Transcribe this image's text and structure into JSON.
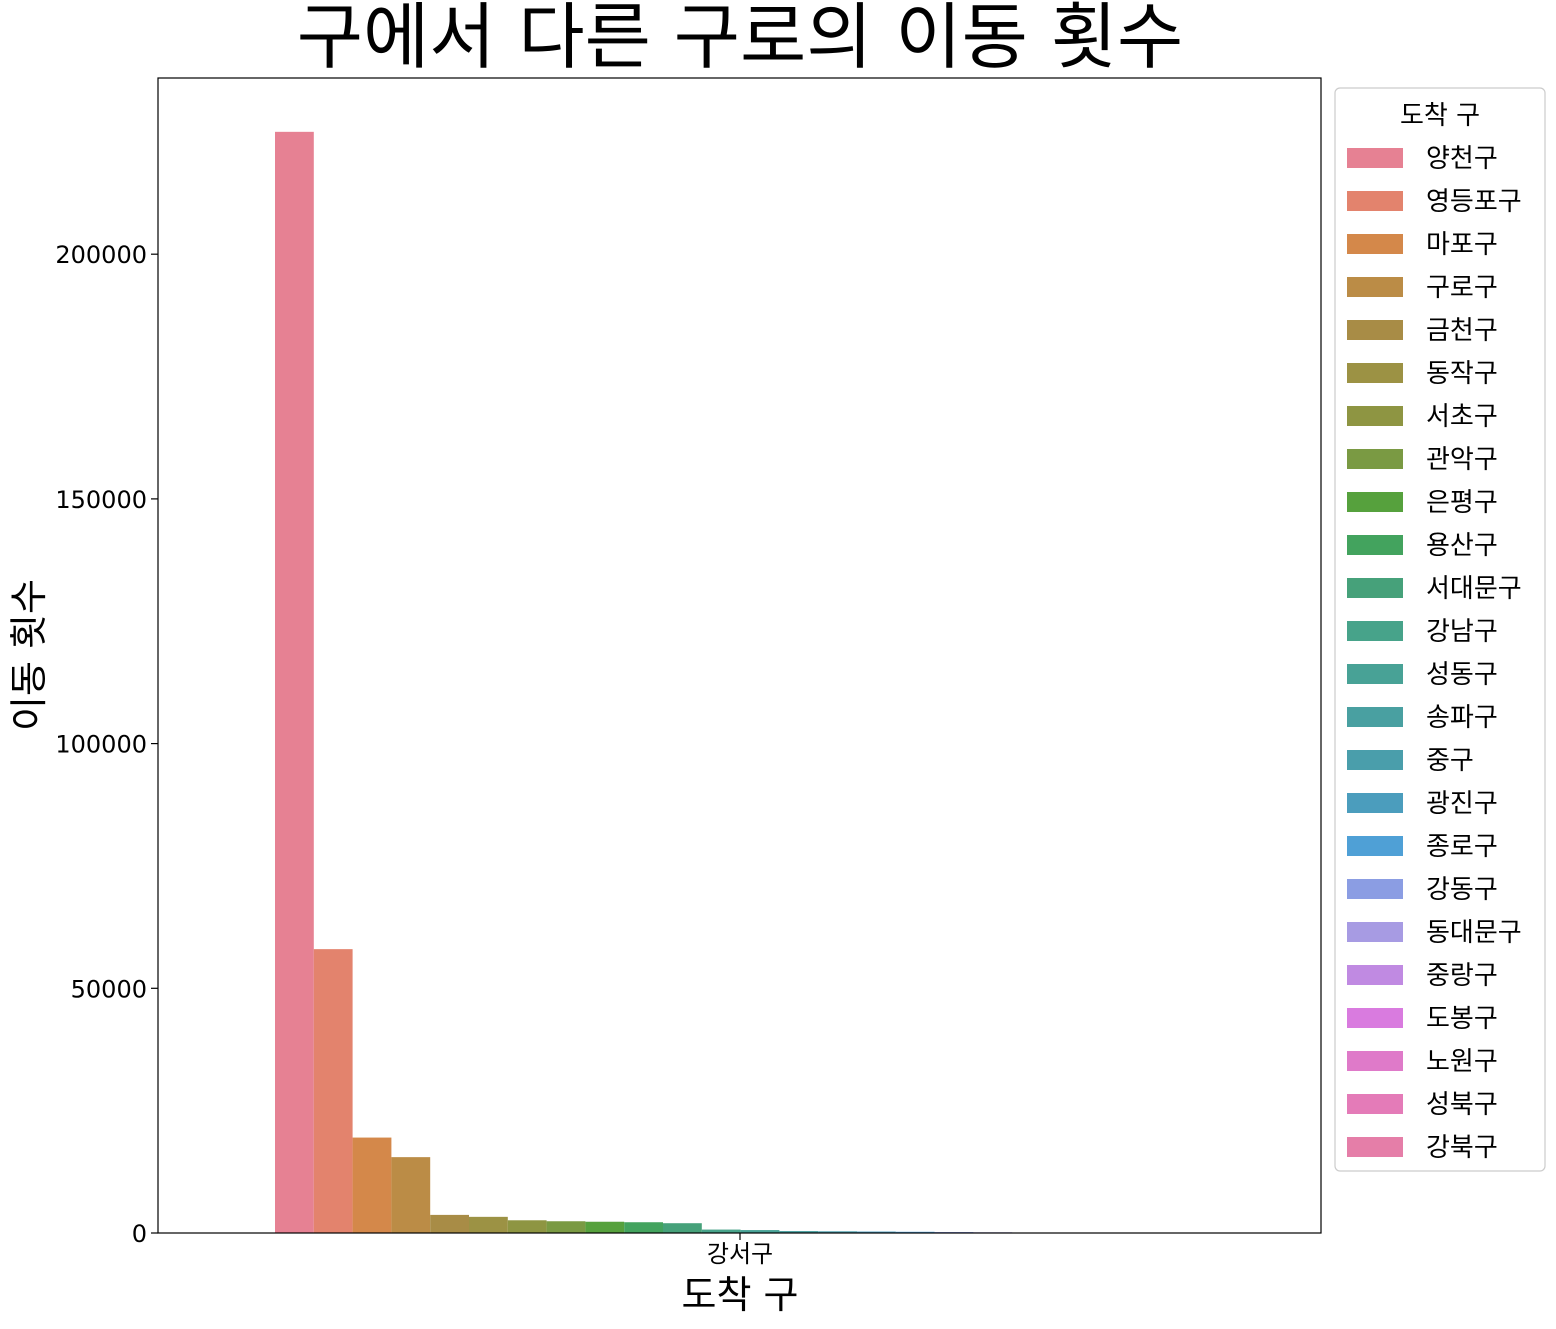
{
  "chart_data": {
    "type": "bar",
    "title": "구에서 다른 구로의 이동 횟수",
    "xlabel": "도착 구",
    "ylabel": "이동 횟수",
    "categories": [
      "강서구"
    ],
    "ylim": [
      0,
      236000
    ],
    "yticks": [
      0,
      50000,
      100000,
      150000,
      200000
    ],
    "ytick_labels": [
      "0",
      "50000",
      "100000",
      "150000",
      "200000"
    ],
    "legend": {
      "title": "도착 구",
      "position": "right-outside"
    },
    "series": [
      {
        "name": "양천구",
        "values": [
          225000
        ],
        "color": "#e68193"
      },
      {
        "name": "영등포구",
        "values": [
          58000
        ],
        "color": "#e3836d"
      },
      {
        "name": "마포구",
        "values": [
          19500
        ],
        "color": "#d4884a"
      },
      {
        "name": "구로구",
        "values": [
          15500
        ],
        "color": "#bb8c46"
      },
      {
        "name": "금천구",
        "values": [
          3700
        ],
        "color": "#a88c46"
      },
      {
        "name": "동작구",
        "values": [
          3300
        ],
        "color": "#9c9244"
      },
      {
        "name": "서초구",
        "values": [
          2600
        ],
        "color": "#8e9542"
      },
      {
        "name": "관악구",
        "values": [
          2400
        ],
        "color": "#7a9a43"
      },
      {
        "name": "은평구",
        "values": [
          2300
        ],
        "color": "#56a13d"
      },
      {
        "name": "용산구",
        "values": [
          2200
        ],
        "color": "#43a35e"
      },
      {
        "name": "서대문구",
        "values": [
          2000
        ],
        "color": "#46a17a"
      },
      {
        "name": "강남구",
        "values": [
          700
        ],
        "color": "#47a38a"
      },
      {
        "name": "성동구",
        "values": [
          600
        ],
        "color": "#48a296"
      },
      {
        "name": "송파구",
        "values": [
          400
        ],
        "color": "#49a0a1"
      },
      {
        "name": "중구",
        "values": [
          350
        ],
        "color": "#4a9eab"
      },
      {
        "name": "광진구",
        "values": [
          300
        ],
        "color": "#4b9dbd"
      },
      {
        "name": "종로구",
        "values": [
          250
        ],
        "color": "#4fa0d6"
      },
      {
        "name": "강동구",
        "values": [
          200
        ],
        "color": "#8b9de3"
      },
      {
        "name": "동대문구",
        "values": [
          150
        ],
        "color": "#a79be3"
      },
      {
        "name": "중랑구",
        "values": [
          100
        ],
        "color": "#c08ae2"
      },
      {
        "name": "도봉구",
        "values": [
          60
        ],
        "color": "#d97bdf"
      },
      {
        "name": "노원구",
        "values": [
          50
        ],
        "color": "#df7ac9"
      },
      {
        "name": "성북구",
        "values": [
          40
        ],
        "color": "#e47bb8"
      },
      {
        "name": "강북구",
        "values": [
          30
        ],
        "color": "#e57ea8"
      }
    ]
  }
}
